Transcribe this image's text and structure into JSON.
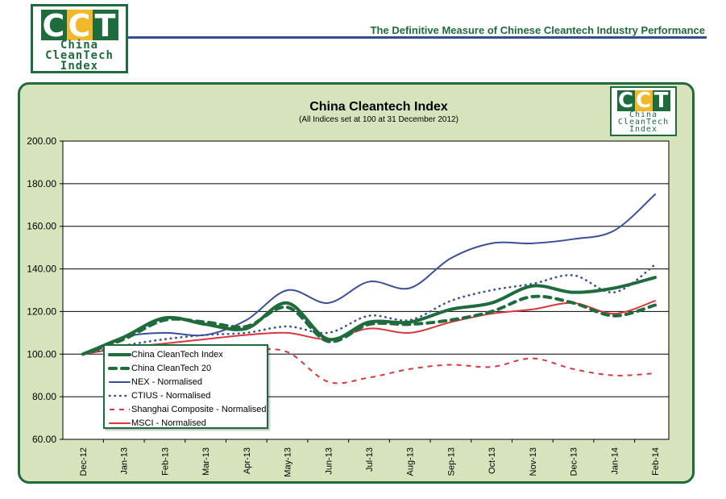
{
  "header": {
    "logo": {
      "letters": [
        "C",
        "C",
        "T"
      ],
      "line1": "China",
      "line2": "CleanTech",
      "line3": "Index"
    },
    "tagline": "The Definitive Measure of Chinese Cleantech Industry Performance"
  },
  "colors": {
    "brand_green": "#1e6b3c",
    "brand_yellow": "#f0b82a",
    "panel_bg": "#d6e3bc",
    "rule_blue": "#2f4f8f"
  },
  "chart_data": {
    "type": "line",
    "title": "China Cleantech Index",
    "subtitle": "(All Indices set at 100 at 31 December 2012)",
    "xlabel": "",
    "ylabel": "",
    "ylim": [
      60,
      200
    ],
    "y_ticks": [
      "60.00",
      "80.00",
      "100.00",
      "120.00",
      "140.00",
      "160.00",
      "180.00",
      "200.00"
    ],
    "grid": true,
    "legend_position": "bottom-left",
    "categories": [
      "Dec-12",
      "Jan-13",
      "Feb-13",
      "Mar-13",
      "Apr-13",
      "May-13",
      "Jun-13",
      "Jul-13",
      "Aug-13",
      "Sep-13",
      "Oct-13",
      "Nov-13",
      "Dec-13",
      "Jan-14",
      "Feb-14"
    ],
    "series": [
      {
        "name": "China CleanTech Index",
        "color": "#1e6b3c",
        "style": "solid-thick",
        "values": [
          100,
          108,
          117,
          114,
          112,
          124,
          107,
          115,
          115,
          121,
          124,
          132,
          129,
          131,
          136
        ]
      },
      {
        "name": "China CleanTech 20",
        "color": "#1e6b3c",
        "style": "dashed-thick",
        "values": [
          100,
          107,
          116,
          115,
          113,
          122,
          106,
          114,
          114,
          116,
          120,
          127,
          124,
          118,
          123
        ]
      },
      {
        "name": "NEX - Normalised",
        "color": "#3a4f9a",
        "style": "solid",
        "values": [
          100,
          108,
          110,
          109,
          116,
          130,
          124,
          134,
          131,
          145,
          152,
          152,
          154,
          158,
          175
        ]
      },
      {
        "name": "CTIUS - Normalised",
        "color": "#3a4f9a",
        "style": "dotted",
        "values": [
          100,
          104,
          107,
          109,
          110,
          113,
          110,
          118,
          116,
          125,
          130,
          133,
          137,
          129,
          142
        ]
      },
      {
        "name": "Shanghai Composite - Normalised",
        "color": "#d9363e",
        "style": "dashed",
        "values": [
          100,
          104,
          104,
          103,
          102,
          101,
          87,
          89,
          93,
          95,
          94,
          98,
          93,
          90,
          91
        ]
      },
      {
        "name": "MSCI - Normalised",
        "color": "#d9363e",
        "style": "solid",
        "values": [
          100,
          103,
          105,
          107,
          109,
          110,
          107,
          112,
          110,
          115,
          119,
          121,
          124,
          119,
          125
        ]
      }
    ]
  }
}
